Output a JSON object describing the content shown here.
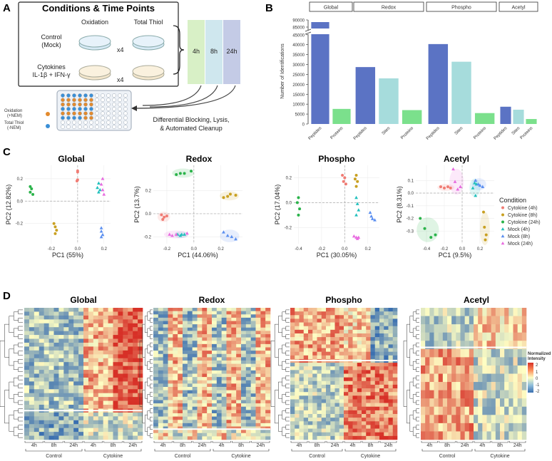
{
  "panel_a": {
    "letter": "A",
    "title": "Conditions & Time Points",
    "col_oxidation": "Oxidation",
    "col_total_thiol": "Total Thiol",
    "row_control_1": "Control",
    "row_control_2": "(Mock)",
    "row_cyto_1": "Cytokines",
    "row_cyto_2": "IL-1β + IFN-γ",
    "rep_label": "x4",
    "timepoints": [
      "4h",
      "8h",
      "24h"
    ],
    "legend_ox_1": "Oxidation",
    "legend_ox_2": "(+NEM)",
    "legend_tt_1": "Total Thiol",
    "legend_tt_2": "(-NEM)",
    "workflow_1": "Differential Blocking, Lysis,",
    "workflow_2": "& Automated Cleanup",
    "colors": {
      "ox": "#e38a2d",
      "tt": "#3a8fd6",
      "t4": "#d8f0c6",
      "t8": "#cfe7ee",
      "t24": "#c4cbe6"
    }
  },
  "panel_b": {
    "letter": "B",
    "ylabel": "Number of Identifications",
    "yticks": [
      "0",
      "5000",
      "10000",
      "15000",
      "20000",
      "25000",
      "30000",
      "35000",
      "40000",
      "45000",
      "85000",
      "90000"
    ],
    "categories_x": [
      "Peptides",
      "Proteins",
      "Peptides",
      "Sites",
      "Proteins",
      "Peptides",
      "Sites",
      "Proteins",
      "Peptides",
      "Sites",
      "Proteins"
    ]
  },
  "chart_data": [
    {
      "type": "bar",
      "title": "Number of Identifications",
      "ylabel": "Number of Identifications",
      "ylim": [
        0,
        90000
      ],
      "axis_break": [
        46000,
        84000
      ],
      "facets": [
        {
          "name": "Global",
          "categories": [
            "Peptides",
            "Proteins"
          ],
          "values": [
            88500,
            7600
          ],
          "colors": [
            "#5b73c4",
            "#7be08c"
          ]
        },
        {
          "name": "Redox",
          "categories": [
            "Peptides",
            "Sites",
            "Proteins"
          ],
          "values": [
            28700,
            23000,
            7000
          ],
          "colors": [
            "#5b73c4",
            "#a6dcdc",
            "#7be08c"
          ]
        },
        {
          "name": "Phospho",
          "categories": [
            "Peptides",
            "Sites",
            "Proteins"
          ],
          "values": [
            40300,
            31400,
            5500
          ],
          "colors": [
            "#5b73c4",
            "#a6dcdc",
            "#7be08c"
          ]
        },
        {
          "name": "Acetyl",
          "categories": [
            "Peptides",
            "Sites",
            "Proteins"
          ],
          "values": [
            8700,
            7200,
            2500
          ],
          "colors": [
            "#5b73c4",
            "#a6dcdc",
            "#7be08c"
          ]
        }
      ]
    },
    {
      "type": "scatter",
      "title": "Global",
      "xlabel": "PC1 (55%)",
      "ylabel": "PC2 (12.82%)",
      "xlim": [
        -0.4,
        0.25
      ],
      "ylim": [
        -0.38,
        0.32
      ],
      "xticks": [
        -0.2,
        0.0,
        0.2
      ],
      "yticks": [
        -0.2,
        0.0,
        0.2
      ],
      "xtick_labels": [
        "-0.2",
        "0.0",
        "0.2"
      ],
      "ytick_labels": [
        "-0.2",
        "0.0",
        "0.2"
      ],
      "series": [
        {
          "name": "Cytokine (4h)",
          "points": [
            [
              0.0,
              0.27
            ],
            [
              0.0,
              0.26
            ],
            [
              0.0,
              0.19
            ],
            [
              -0.005,
              0.18
            ]
          ]
        },
        {
          "name": "Cytokine (8h)",
          "points": [
            [
              -0.18,
              -0.2
            ],
            [
              -0.17,
              -0.23
            ],
            [
              -0.16,
              -0.26
            ],
            [
              -0.17,
              -0.29
            ]
          ]
        },
        {
          "name": "Cytokine (24h)",
          "points": [
            [
              -0.36,
              0.13
            ],
            [
              -0.35,
              0.11
            ],
            [
              -0.36,
              0.08
            ],
            [
              -0.34,
              0.06
            ]
          ]
        },
        {
          "name": "Mock (4h)",
          "points": [
            [
              0.16,
              0.16
            ],
            [
              0.15,
              0.12
            ],
            [
              0.17,
              0.1
            ],
            [
              0.16,
              0.08
            ]
          ]
        },
        {
          "name": "Mock (8h)",
          "points": [
            [
              0.18,
              -0.24
            ],
            [
              0.18,
              -0.27
            ],
            [
              0.19,
              -0.3
            ],
            [
              0.18,
              -0.32
            ]
          ]
        },
        {
          "name": "Mock (24h)",
          "points": [
            [
              0.19,
              0.2
            ],
            [
              0.18,
              0.15
            ],
            [
              0.19,
              0.1
            ],
            [
              0.2,
              0.06
            ]
          ]
        }
      ]
    },
    {
      "type": "scatter",
      "title": "Redox",
      "xlabel": "PC1 (44.06%)",
      "ylabel": "PC2 (13.7%)",
      "xlim": [
        -0.3,
        0.36
      ],
      "ylim": [
        -0.26,
        0.42
      ],
      "xticks": [
        -0.2,
        0.0,
        0.2
      ],
      "yticks": [
        -0.2,
        0.0,
        0.2
      ],
      "xtick_labels": [
        "-0.2",
        "0.0",
        "0.2"
      ],
      "ytick_labels": [
        "-0.2",
        "0.0",
        "0.2"
      ],
      "series": [
        {
          "name": "Cytokine (4h)",
          "points": [
            [
              -0.24,
              -0.01
            ],
            [
              -0.22,
              -0.03
            ],
            [
              -0.2,
              -0.02
            ],
            [
              -0.23,
              -0.05
            ]
          ]
        },
        {
          "name": "Cytokine (8h)",
          "points": [
            [
              0.22,
              0.14
            ],
            [
              0.25,
              0.15
            ],
            [
              0.27,
              0.17
            ],
            [
              0.31,
              0.16
            ]
          ]
        },
        {
          "name": "Cytokine (24h)",
          "points": [
            [
              -0.13,
              0.34
            ],
            [
              -0.1,
              0.35
            ],
            [
              -0.07,
              0.35
            ],
            [
              -0.02,
              0.37
            ]
          ]
        },
        {
          "name": "Mock (4h)",
          "points": [
            [
              -0.12,
              -0.18
            ],
            [
              -0.1,
              -0.19
            ],
            [
              -0.09,
              -0.18
            ],
            [
              -0.07,
              -0.18
            ]
          ]
        },
        {
          "name": "Mock (8h)",
          "points": [
            [
              0.22,
              -0.16
            ],
            [
              0.25,
              -0.19
            ],
            [
              0.28,
              -0.2
            ],
            [
              0.31,
              -0.22
            ]
          ]
        },
        {
          "name": "Mock (24h)",
          "points": [
            [
              -0.18,
              -0.18
            ],
            [
              -0.16,
              -0.19
            ],
            [
              -0.13,
              -0.18
            ],
            [
              -0.05,
              -0.17
            ]
          ]
        }
      ]
    },
    {
      "type": "scatter",
      "title": "Phospho",
      "xlabel": "PC1 (30.05%)",
      "ylabel": "PC2 (17.04%)",
      "xlim": [
        -0.44,
        0.3
      ],
      "ylim": [
        -0.33,
        0.3
      ],
      "xticks": [
        -0.4,
        -0.2,
        0.0,
        0.2
      ],
      "yticks": [
        -0.2,
        0.0,
        0.2
      ],
      "xtick_labels": [
        "-0.4",
        "-0.2",
        "0.0",
        "0.2"
      ],
      "ytick_labels": [
        "-0.2",
        "0.0",
        "0.2"
      ],
      "series": [
        {
          "name": "Cytokine (4h)",
          "points": [
            [
              -0.02,
              0.22
            ],
            [
              0.0,
              0.2
            ],
            [
              -0.01,
              0.17
            ],
            [
              0.01,
              0.15
            ]
          ]
        },
        {
          "name": "Cytokine (8h)",
          "points": [
            [
              0.1,
              0.22
            ],
            [
              0.09,
              0.19
            ],
            [
              0.11,
              0.17
            ],
            [
              0.1,
              0.13
            ]
          ]
        },
        {
          "name": "Cytokine (24h)",
          "points": [
            [
              -0.4,
              0.04
            ],
            [
              -0.41,
              0.0
            ],
            [
              -0.39,
              -0.05
            ],
            [
              -0.4,
              -0.1
            ]
          ]
        },
        {
          "name": "Mock (4h)",
          "points": [
            [
              0.1,
              0.04
            ],
            [
              0.11,
              -0.01
            ],
            [
              0.12,
              -0.06
            ],
            [
              0.1,
              -0.1
            ]
          ]
        },
        {
          "name": "Mock (8h)",
          "points": [
            [
              0.22,
              -0.08
            ],
            [
              0.23,
              -0.11
            ],
            [
              0.24,
              -0.13
            ],
            [
              0.26,
              -0.14
            ]
          ]
        },
        {
          "name": "Mock (24h)",
          "points": [
            [
              0.08,
              -0.27
            ],
            [
              0.1,
              -0.28
            ],
            [
              0.12,
              -0.28
            ],
            [
              0.11,
              -0.29
            ]
          ]
        }
      ]
    },
    {
      "type": "scatter",
      "title": "Acetyl",
      "xlabel": "PC1 (9.5%)",
      "ylabel": "PC2 (8.31%)",
      "xlim": [
        -0.52,
        0.36
      ],
      "ylim": [
        -0.4,
        0.22
      ],
      "xticks": [
        -0.4,
        -0.2,
        0.0,
        0.2
      ],
      "yticks": [
        -0.3,
        -0.2,
        -0.1,
        0.0,
        0.1
      ],
      "xtick_labels": [
        "-0.4",
        "-0.2",
        "0.0",
        "0.2"
      ],
      "ytick_labels": [
        "-0.3",
        "-0.2",
        "-0.1",
        "0.0",
        "0.1"
      ],
      "series": [
        {
          "name": "Cytokine (4h)",
          "points": [
            [
              -0.24,
              0.05
            ],
            [
              -0.2,
              0.04
            ],
            [
              -0.16,
              0.05
            ],
            [
              -0.13,
              0.04
            ]
          ]
        },
        {
          "name": "Cytokine (8h)",
          "points": [
            [
              0.24,
              -0.15
            ],
            [
              0.25,
              -0.27
            ],
            [
              0.27,
              -0.33
            ],
            [
              0.26,
              -0.37
            ]
          ]
        },
        {
          "name": "Cytokine (24h)",
          "points": [
            [
              -0.47,
              -0.2
            ],
            [
              -0.42,
              -0.28
            ],
            [
              -0.35,
              -0.35
            ],
            [
              -0.3,
              -0.33
            ]
          ]
        },
        {
          "name": "Mock (4h)",
          "points": [
            [
              0.12,
              0.04
            ],
            [
              0.15,
              -0.02
            ],
            [
              0.14,
              0.08
            ],
            [
              0.16,
              0.07
            ]
          ]
        },
        {
          "name": "Mock (8h)",
          "points": [
            [
              0.15,
              0.1
            ],
            [
              0.18,
              0.07
            ],
            [
              0.2,
              0.06
            ],
            [
              0.23,
              0.05
            ]
          ]
        },
        {
          "name": "Mock (24h)",
          "points": [
            [
              -0.1,
              0.19
            ],
            [
              -0.08,
              0.09
            ],
            [
              -0.05,
              0.03
            ],
            [
              -0.02,
              0.05
            ]
          ]
        }
      ]
    }
  ],
  "pca_common": {
    "letter": "C",
    "legend_title": "Condition",
    "legend_items": [
      "Cytokine (4h)",
      "Cytokine (8h)",
      "Cytokine (24h)",
      "Mock (4h)",
      "Mock (8h)",
      "Mock (24h)"
    ],
    "series_colors": [
      "#f07c74",
      "#c9a021",
      "#2ab34a",
      "#21c0bd",
      "#5b8ff0",
      "#e86be0"
    ],
    "series_shapes": [
      "circle",
      "circle",
      "circle",
      "triangle",
      "triangle",
      "triangle"
    ]
  },
  "panel_d": {
    "letter": "D",
    "titles": [
      "Global",
      "Redox",
      "Phospho",
      "Acetyl"
    ],
    "time_labels": [
      "4h",
      "8h",
      "24h",
      "4h",
      "8h",
      "24h"
    ],
    "group_labels": [
      "Control",
      "Cytokine"
    ],
    "legend_title_1": "Normalized",
    "legend_title_2": "Intensity",
    "legend_ticks": [
      "2",
      "1",
      "0",
      "-1",
      "-2"
    ],
    "color_low": "#3a6fb0",
    "color_mid": "#fefec4",
    "color_high": "#d73027"
  }
}
